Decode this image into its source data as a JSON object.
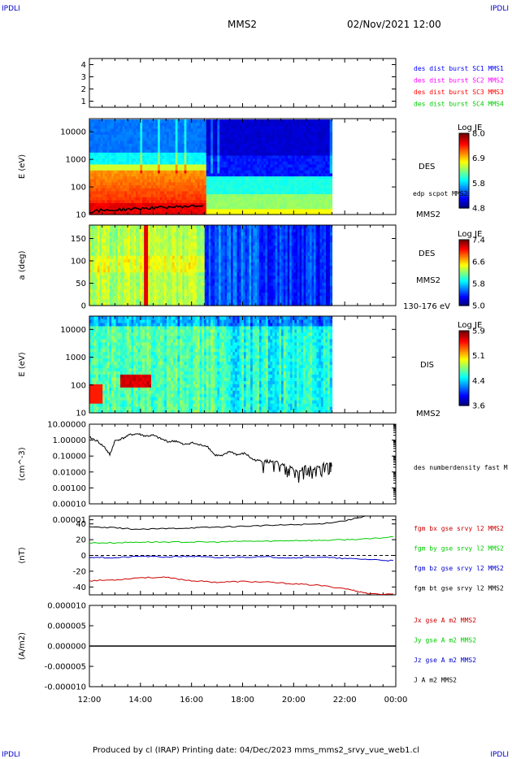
{
  "header": {
    "corner_tl": "IPDLI",
    "corner_tr": "IPDLI",
    "corner_bl": "IPDLI",
    "corner_br": "IPDLI",
    "spacecraft": "MMS2",
    "datetime": "02/Nov/2021 12:00"
  },
  "footer": {
    "text": "Produced by cl (IRAP)   Printing date: 04/Dec/2023   mms_mms2_srvy_vue_web1.cl"
  },
  "chart_data": [
    {
      "type": "line",
      "panel": "sc-position",
      "ylim": [
        0.5,
        4.5
      ],
      "yticks": [
        "4",
        "3",
        "2",
        "1"
      ],
      "legend": [
        {
          "label": "des dist burst SC1 MMS1",
          "color": "#0000ff"
        },
        {
          "label": "des dist burst SC2 MMS2",
          "color": "#ff00ff"
        },
        {
          "label": "des dist burst SC3 MMS3",
          "color": "#ff0000"
        },
        {
          "label": "des dist burst SC4 MMS4",
          "color": "#00cc00"
        }
      ]
    },
    {
      "type": "heatmap",
      "panel": "des-energy",
      "ylabel": "E (eV)",
      "yscale": "log",
      "ylim": [
        10,
        30000
      ],
      "yticks": [
        "10000",
        "1000",
        "100",
        "10"
      ],
      "instrument": "DES",
      "probe": "MMS2",
      "overlay_label": "edp scpot MMS2",
      "colorbar": {
        "title": "Log JE",
        "min": 4.8,
        "max": 8.0,
        "ticks": [
          "8.0",
          "6.9",
          "5.8",
          "4.8"
        ]
      },
      "data_end_hour": 9.5
    },
    {
      "type": "heatmap",
      "panel": "des-pitch",
      "ylabel": "a (deg)",
      "ylim": [
        0,
        180
      ],
      "yticks": [
        "150",
        "100",
        "50",
        "0"
      ],
      "instrument": "DES",
      "probe": "MMS2",
      "energy_band": "130-176 eV",
      "colorbar": {
        "title": "Log JE",
        "min": 5.0,
        "max": 7.4,
        "ticks": [
          "7.4",
          "6.6",
          "5.8",
          "5.0"
        ]
      },
      "data_end_hour": 9.5
    },
    {
      "type": "heatmap",
      "panel": "dis-energy",
      "ylabel": "E (eV)",
      "yscale": "log",
      "ylim": [
        10,
        30000
      ],
      "yticks": [
        "10000",
        "1000",
        "100",
        "10"
      ],
      "instrument": "DIS",
      "probe": "MMS2",
      "colorbar": {
        "title": "Log JE",
        "min": 3.6,
        "max": 5.9,
        "ticks": [
          "5.9",
          "5.1",
          "4.4",
          "3.6"
        ]
      },
      "data_end_hour": 9.5
    },
    {
      "type": "line",
      "panel": "density",
      "ylabel": "(cm^-3)",
      "yscale": "log",
      "ylim": [
        0.0001,
        10
      ],
      "yticks": [
        "10.00000",
        "1.00000",
        "0.10000",
        "0.01000",
        "0.00100",
        "0.00010",
        "0.00001"
      ],
      "series": [
        {
          "name": "des numberdensity fast M",
          "color": "#000000",
          "x": [
            0,
            0.3,
            0.6,
            0.8,
            1.0,
            1.3,
            1.6,
            1.9,
            2.2,
            2.5,
            2.8,
            3.1,
            3.4,
            3.7,
            4.0,
            4.3,
            4.6,
            4.9,
            5.2,
            5.5,
            5.8,
            6.1,
            6.4,
            6.7,
            7.0,
            7.3,
            7.6,
            7.9,
            8.2,
            8.5,
            8.8,
            9.1,
            9.4,
            9.5
          ],
          "y": [
            1.5,
            0.9,
            0.35,
            0.12,
            0.9,
            1.3,
            2.2,
            2.5,
            1.8,
            2.0,
            1.2,
            0.8,
            0.9,
            0.5,
            0.7,
            0.5,
            0.45,
            0.12,
            0.1,
            0.2,
            0.12,
            0.15,
            0.06,
            0.05,
            0.03,
            0.025,
            0.02,
            0.012,
            0.008,
            0.02,
            0.01,
            0.02,
            0.02,
            0.02
          ]
        }
      ]
    },
    {
      "type": "line",
      "panel": "magnetic-field",
      "ylabel": "(nT)",
      "ylim": [
        -50,
        50
      ],
      "yticks": [
        "40",
        "20",
        "0",
        "-20",
        "-40"
      ],
      "series": [
        {
          "name": "fgm bx gse srvy l2 MMS2",
          "color": "#cc0000",
          "x": [
            0,
            1,
            2,
            3,
            4,
            5,
            6,
            7,
            8,
            9,
            10,
            10.6,
            11,
            12
          ],
          "y": [
            -32,
            -31,
            -28,
            -28,
            -32,
            -34,
            -33,
            -34,
            -36,
            -38,
            -42,
            -46,
            -49,
            -49
          ]
        },
        {
          "name": "fgm by gse srvy l2 MMS2",
          "color": "#00cc00",
          "x": [
            0,
            1,
            2,
            3,
            4,
            5,
            6,
            7,
            8,
            9,
            10,
            11,
            12
          ],
          "y": [
            16,
            16,
            17,
            17,
            17,
            17,
            18,
            18,
            19,
            19,
            20,
            21,
            24
          ]
        },
        {
          "name": "fgm bz gse srvy l2 MMS2",
          "color": "#0000cc",
          "x": [
            0,
            1,
            2,
            3,
            4,
            5,
            6,
            7,
            8,
            9,
            10,
            11,
            12
          ],
          "y": [
            -2,
            -3,
            -1,
            -2,
            -1,
            -3,
            -2,
            -2,
            -3,
            -2,
            -4,
            -5,
            -7
          ]
        },
        {
          "name": "fgm bt gse srvy l2 MMS2",
          "color": "#000000",
          "x": [
            0,
            1,
            2,
            3,
            4,
            5,
            6,
            7,
            8,
            9,
            10,
            10.8,
            12
          ],
          "y": [
            36,
            35,
            33,
            34,
            35,
            36,
            37,
            38,
            39,
            40,
            44,
            50,
            51
          ]
        }
      ]
    },
    {
      "type": "line",
      "panel": "current-density",
      "ylabel": "(A/m2)",
      "ylim": [
        -1e-05,
        1e-05
      ],
      "yticks": [
        "0.000010",
        "0.000005",
        "0.000000",
        "-0.000005",
        "-0.000010"
      ],
      "xticks": [
        "12:00",
        "14:00",
        "16:00",
        "18:00",
        "20:00",
        "22:00",
        "00:00"
      ],
      "series": [
        {
          "name": "Jx gse A m2 MMS2",
          "color": "#cc0000",
          "x": [
            0,
            12
          ],
          "y": [
            0,
            0
          ]
        },
        {
          "name": "Jy gse A m2 MMS2",
          "color": "#00cc00",
          "x": [
            0,
            12
          ],
          "y": [
            0,
            0
          ]
        },
        {
          "name": "Jz gse A m2 MMS2",
          "color": "#0000cc",
          "x": [
            0,
            12
          ],
          "y": [
            0,
            0
          ]
        },
        {
          "name": "J A m2 MMS2",
          "color": "#000000",
          "x": [
            0,
            12
          ],
          "y": [
            0,
            0
          ]
        }
      ]
    }
  ]
}
